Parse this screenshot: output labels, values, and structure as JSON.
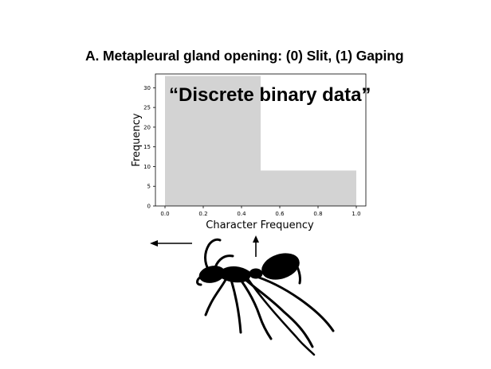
{
  "figure": {
    "title": "A.  Metapleural gland opening: (0) Slit, (1) Gaping",
    "annotation": "“Discrete binary data”"
  },
  "chart_data": {
    "type": "bar",
    "title": "A.  Metapleural gland opening: (0) Slit, (1) Gaping",
    "xlabel": "Character Frequency",
    "ylabel": "Frequency",
    "xlim": [
      -0.05,
      1.05
    ],
    "ylim": [
      0,
      33.5
    ],
    "x_ticks": [
      0.0,
      0.2,
      0.4,
      0.6,
      0.8,
      1.0
    ],
    "x_tick_labels": [
      "0.0",
      "0.2",
      "0.4",
      "0.6",
      "0.8",
      "1.0"
    ],
    "y_ticks": [
      0,
      5,
      10,
      15,
      20,
      25,
      30
    ],
    "y_tick_labels": [
      "0",
      "5",
      "10",
      "15",
      "20",
      "25",
      "30"
    ],
    "bins": [
      {
        "x_start": 0.0,
        "x_end": 0.5,
        "value": 33
      },
      {
        "x_start": 0.5,
        "x_end": 1.0,
        "value": 9
      }
    ],
    "bar_color": "#d3d3d3",
    "grid": false,
    "annotation": "“Discrete binary data”"
  },
  "illustration": {
    "icon": "ant-silhouette-icon",
    "arrows": [
      "left-arrow-icon",
      "up-arrow-icon"
    ]
  }
}
